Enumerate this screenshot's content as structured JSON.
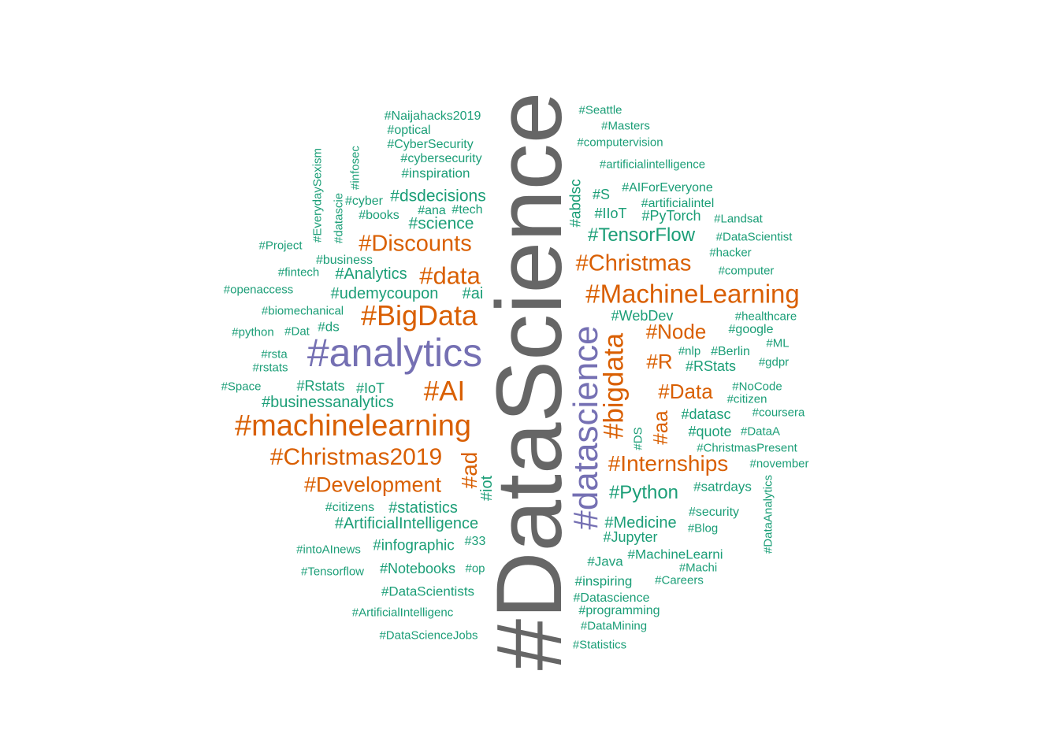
{
  "palette": {
    "top": "#666666",
    "high": "#7570b3",
    "mid": "#d95f02",
    "low": "#1b9e77"
  },
  "words": [
    "#DataScience",
    "#analytics",
    "#datascience",
    "#machinelearning",
    "#BigData",
    "#MachineLearning",
    "#bigdata",
    "#Christmas2019",
    "#Discounts",
    "#data",
    "#AI",
    "#Christmas",
    "#Internships",
    "#Development",
    "#Node",
    "#Data",
    "#R",
    "#ad",
    "#aa",
    "#Python",
    "#TensorFlow",
    "#dsdecisions",
    "#science",
    "#Analytics",
    "#udemycoupon",
    "#ai",
    "#businessanalytics",
    "#ArtificialIntelligence",
    "#statistics",
    "#Medicine",
    "#infographic",
    "#Notebooks",
    "#DataScientists",
    "#Jupyter",
    "#WebDev",
    "#RStats",
    "#iot",
    "#abdsc",
    "#quote",
    "#satrdays",
    "#inspiring",
    "#programming",
    "#Datascience",
    "#Java",
    "#MachineLearni",
    "#datasc",
    "#IIoT",
    "#S",
    "#PyTorch",
    "#AIForEveryone",
    "#artificialintel",
    "#Rstats",
    "#IoT",
    "#inspiration",
    "#cybersecurity",
    "#CyberSecurity",
    "#optical",
    "#Naijahacks2019",
    "#books",
    "#ana",
    "#tech",
    "#cyber",
    "#business",
    "#fintech",
    "#Project",
    "#openaccess",
    "#biomechanical",
    "#python",
    "#Dat",
    "#ds",
    "#rsta",
    "#rstats",
    "#Space",
    "#citizens",
    "#intoAInews",
    "#33",
    "#Tensorflow",
    "#op",
    "#ArtificialIntelligenc",
    "#DataScienceJobs",
    "#Seattle",
    "#Masters",
    "#computervision",
    "#artificialintelligence",
    "#Landsat",
    "#DataScientist",
    "#hacker",
    "#computer",
    "#healthcare",
    "#google",
    "#ML",
    "#nlp",
    "#Berlin",
    "#gdpr",
    "#NoCode",
    "#citizen",
    "#coursera",
    "#DataA",
    "#ChristmasPresent",
    "#november",
    "#security",
    "#Blog",
    "#Machi",
    "#Careers",
    "#DataMining",
    "#Statistics",
    "#DS",
    "#EverydaySexism",
    "#datascie",
    "#infosec",
    "#DataAnalytics"
  ]
}
